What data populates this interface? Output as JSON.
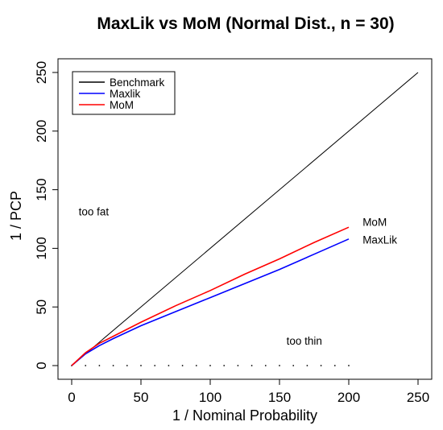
{
  "chart_data": {
    "type": "line",
    "title": "MaxLik vs MoM (Normal Dist., n = 30)",
    "xlabel": "1 / Nominal Probability",
    "ylabel": "1 / PCP",
    "xlim": [
      0,
      250
    ],
    "ylim": [
      0,
      250
    ],
    "x_ticks": [
      "0",
      "50",
      "100",
      "150",
      "200",
      "250"
    ],
    "y_ticks": [
      "0",
      "50",
      "100",
      "150",
      "200",
      "250"
    ],
    "grid": false,
    "legend_position": "top-left",
    "series": [
      {
        "name": "Benchmark",
        "color": "#000000",
        "x": [
          0,
          250
        ],
        "y": [
          0,
          250
        ]
      },
      {
        "name": "Maxlik",
        "color": "#0000ff",
        "x": [
          0,
          10,
          20,
          30,
          50,
          75,
          100,
          125,
          150,
          175,
          200
        ],
        "y": [
          0,
          10,
          17,
          23,
          34,
          46,
          58,
          70,
          82,
          95,
          108
        ]
      },
      {
        "name": "MoM",
        "color": "#ff0000",
        "x": [
          0,
          10,
          20,
          30,
          50,
          75,
          100,
          125,
          150,
          175,
          200
        ],
        "y": [
          0,
          11,
          19,
          25,
          37,
          51,
          64,
          78,
          91,
          105,
          118
        ]
      }
    ],
    "annotations": [
      {
        "text": "too fat",
        "x": 5,
        "y": 128
      },
      {
        "text": "too thin",
        "x": 155,
        "y": 18
      },
      {
        "text": "MoM",
        "x": 210,
        "y": 119
      },
      {
        "text": "MaxLik",
        "x": 210,
        "y": 104
      }
    ],
    "baseline_dots_x": [
      0,
      10,
      20,
      30,
      40,
      50,
      60,
      70,
      80,
      90,
      100,
      110,
      120,
      130,
      140,
      150,
      160,
      170,
      180,
      190,
      200
    ]
  }
}
